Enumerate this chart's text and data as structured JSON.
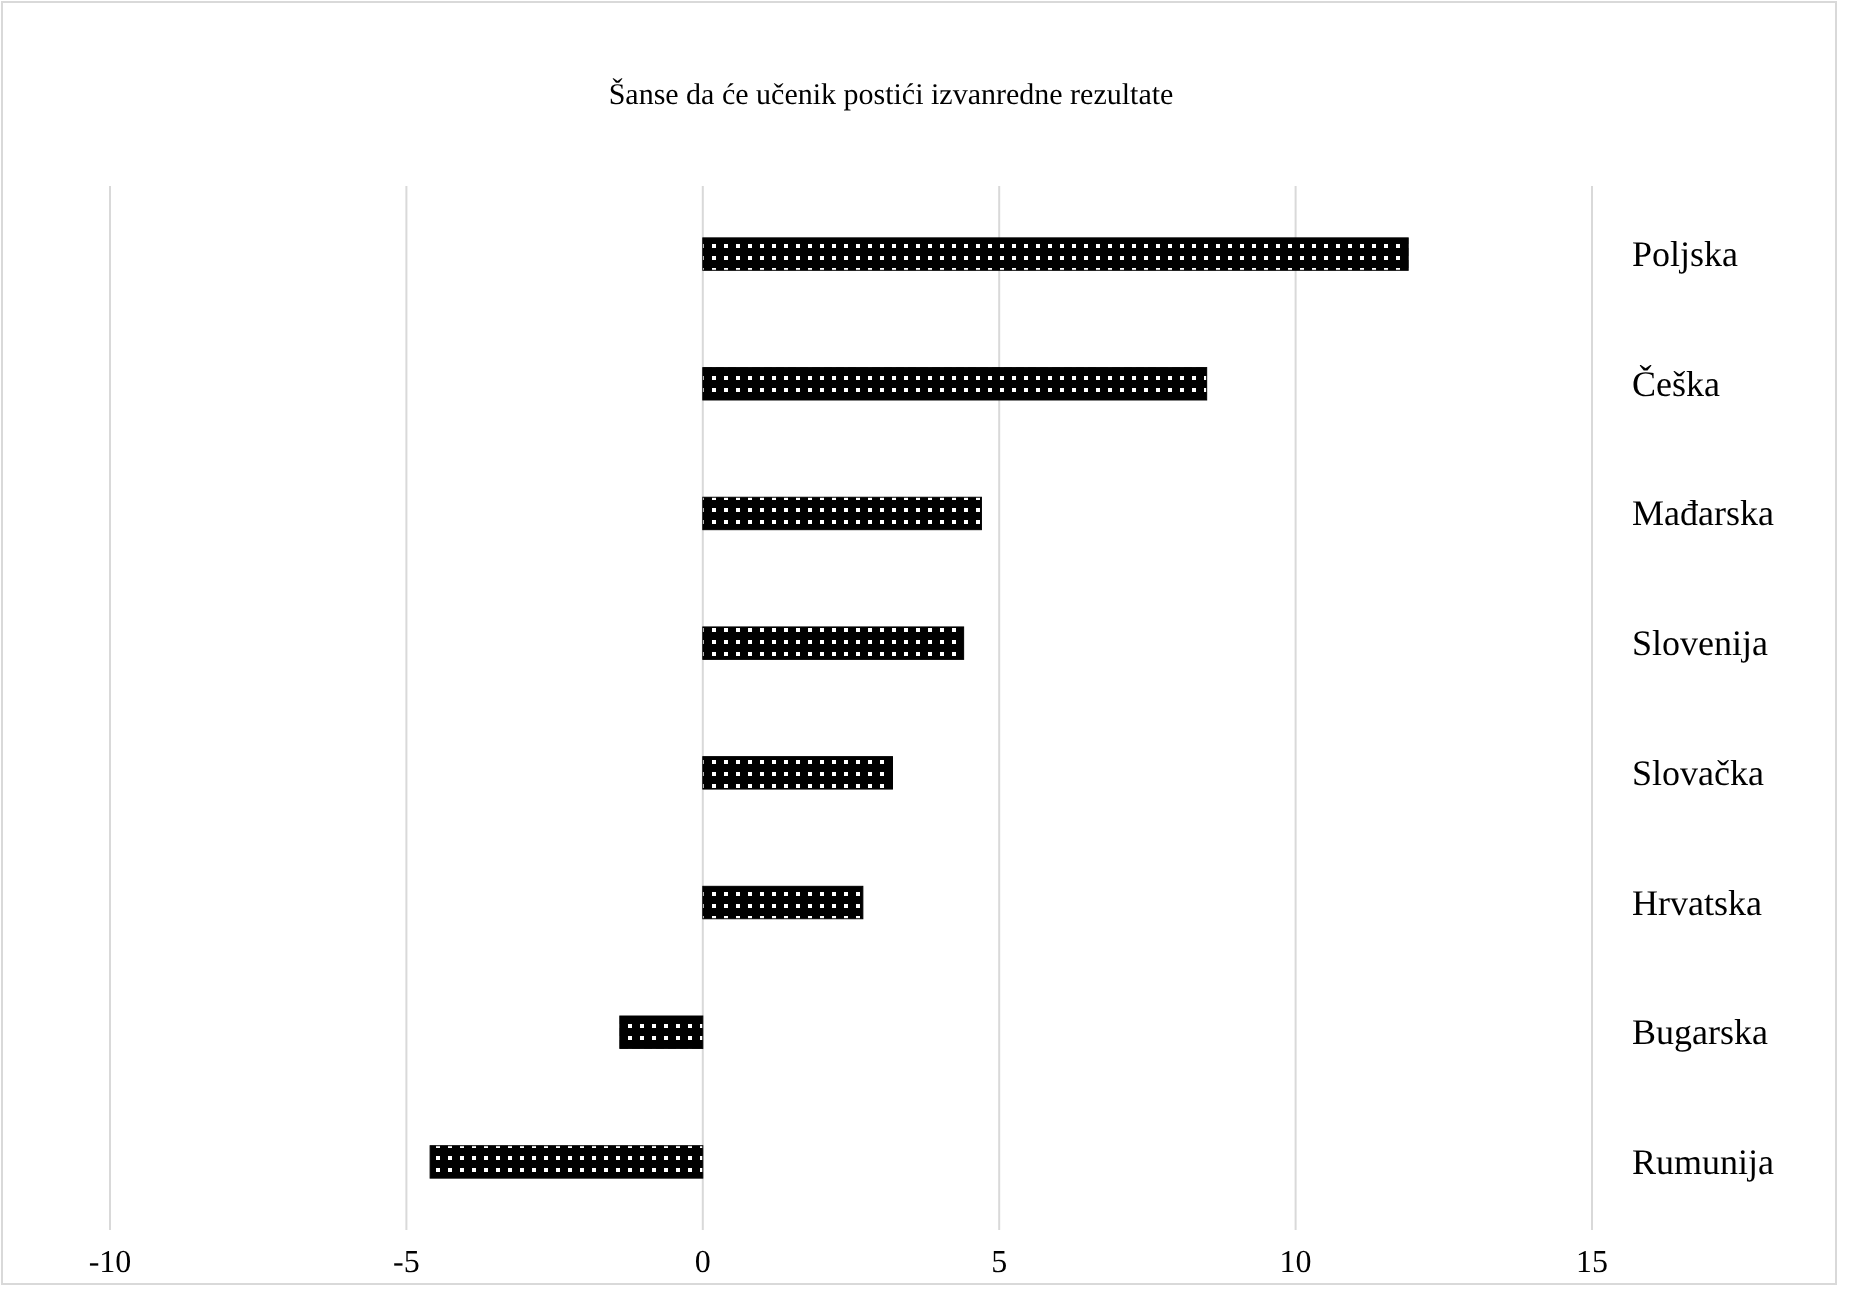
{
  "chart_data": {
    "type": "bar",
    "orientation": "horizontal",
    "title": "Šanse da će učenik postići izvanredne rezultate",
    "categories": [
      "Poljska",
      "Češka",
      "Mađarska",
      "Slovenija",
      "Slovačka",
      "Hrvatska",
      "Bugarska",
      "Rumunija"
    ],
    "values": [
      11.9,
      8.5,
      4.7,
      4.4,
      3.2,
      2.7,
      -1.4,
      -4.6
    ],
    "color": "#000000",
    "xlim": [
      -10,
      15
    ],
    "xticks": [
      -10,
      -5,
      0,
      5,
      10,
      15
    ],
    "grid": "x"
  }
}
